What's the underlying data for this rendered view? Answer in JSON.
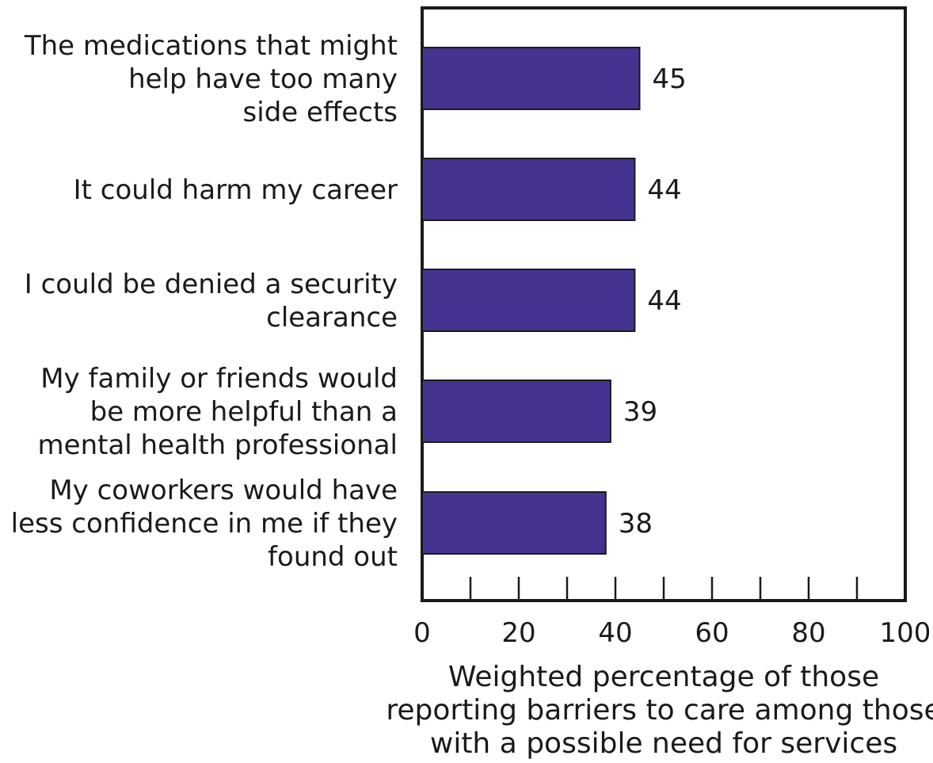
{
  "chart_data": {
    "type": "bar",
    "orientation": "horizontal",
    "categories": [
      [
        "The medications that might",
        "help have too many",
        "side effects"
      ],
      [
        "It could harm my career"
      ],
      [
        "I could be denied a security",
        "clearance"
      ],
      [
        "My family or friends would",
        "be more helpful than a",
        "mental health professional"
      ],
      [
        "My coworkers would have",
        "less confidence in me if they",
        "found out"
      ]
    ],
    "values": [
      45,
      44,
      44,
      39,
      38
    ],
    "value_labels": [
      "45",
      "44",
      "44",
      "39",
      "38"
    ],
    "xlim": [
      0,
      100
    ],
    "x_ticks": [
      0,
      20,
      40,
      60,
      80,
      100
    ],
    "x_tick_labels": [
      "0",
      "20",
      "40",
      "60",
      "80",
      "100"
    ],
    "xlabel": [
      "Weighted percentage of those",
      "reporting barriers to care among those",
      "with a possible need for services"
    ],
    "ylabel": "",
    "grid": false,
    "bar_color": "#46338f",
    "bar_edge_color": "#1a1a1a"
  }
}
